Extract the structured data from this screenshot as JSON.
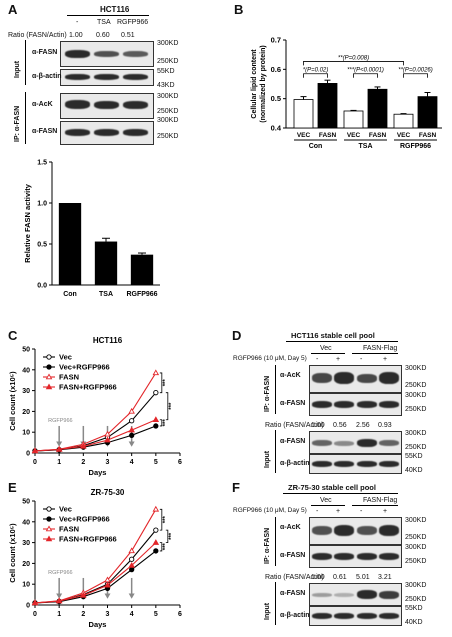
{
  "panelA": {
    "label": "A",
    "cell_line": "HCT116",
    "lanes": [
      "-",
      "TSA",
      "RGFP966"
    ],
    "ratio_label": "Ratio (FASN/Actin)",
    "ratios": [
      "1.00",
      "0.60",
      "0.51"
    ],
    "input_label": "Input",
    "ip_label": "IP: α-FASN",
    "blots": [
      {
        "name": "α-FASN",
        "markers": [
          "300KD",
          "250KD"
        ]
      },
      {
        "name": "α-β-actin",
        "markers": [
          "55KD",
          "43KD"
        ]
      },
      {
        "name": "α-AcK",
        "markers": [
          "300KD",
          "250KD"
        ]
      },
      {
        "name": "α-FASN",
        "markers": [
          "300KD",
          "250KD"
        ]
      }
    ]
  },
  "panelB": {
    "label": "B"
  },
  "panelC": {
    "label": "C"
  },
  "panelD": {
    "label": "D",
    "title": "HCT116 stable cell pool",
    "treatment": "RGFP966 (10 μM, Day 5)",
    "groups": [
      "Vec",
      "FASN-Flag"
    ],
    "signs": [
      "-",
      "+",
      "-",
      "+"
    ],
    "ip_label": "IP: α-FASN",
    "input_label": "Input",
    "ratio_label": "Ratio (FASN/Actin)",
    "ratios": [
      "1.00",
      "0.56",
      "2.56",
      "0.93"
    ],
    "blots": [
      {
        "name": "α-AcK",
        "markers": [
          "300KD",
          "250KD"
        ]
      },
      {
        "name": "α-FASN",
        "markers": [
          "300KD",
          "250KD"
        ]
      },
      {
        "name": "α-FASN",
        "markers": [
          "300KD",
          "250KD"
        ]
      },
      {
        "name": "α-β-actin",
        "markers": [
          "55KD",
          "40KD"
        ]
      }
    ]
  },
  "panelE": {
    "label": "E"
  },
  "panelF": {
    "label": "F",
    "title": "ZR-75-30 stable cell pool",
    "treatment": "RGFP966 (10 μM, Day 5)",
    "groups": [
      "Vec",
      "FASN-Flag"
    ],
    "signs": [
      "-",
      "+",
      "-",
      "+"
    ],
    "ip_label": "IP: α-FASN",
    "input_label": "Input",
    "ratio_label": "Ratio (FASN/Actin)",
    "ratios": [
      "1.00",
      "0.61",
      "5.01",
      "3.21"
    ],
    "blots": [
      {
        "name": "α-AcK",
        "markers": [
          "300KD",
          "250KD"
        ]
      },
      {
        "name": "α-FASN",
        "markers": [
          "300KD",
          "250KD"
        ]
      },
      {
        "name": "α-FASN",
        "markers": [
          "300KD",
          "250KD"
        ]
      },
      {
        "name": "α-β-actin",
        "markers": [
          "55KD",
          "40KD"
        ]
      }
    ]
  },
  "chart_data": [
    {
      "id": "A-activity",
      "type": "bar",
      "categories": [
        "Con",
        "TSA",
        "RGFP966"
      ],
      "values": [
        1.0,
        0.53,
        0.37
      ],
      "errors": [
        0.0,
        0.04,
        0.02
      ],
      "ylabel": "Relative FASN activity",
      "ylim": [
        0,
        1.5
      ],
      "yticks": [
        "0.0",
        "0.5",
        "1.0",
        "1.5"
      ]
    },
    {
      "id": "B-lipid",
      "type": "bar",
      "ylabel": "Cellular lipid content\n(normalized by protein)",
      "ylim": [
        0.4,
        0.7
      ],
      "yticks": [
        "0.4",
        "0.5",
        "0.6",
        "0.7"
      ],
      "groups": [
        "Con",
        "TSA",
        "RGFP966"
      ],
      "bar_labels": [
        "VEC",
        "FASN",
        "VEC",
        "FASN",
        "VEC",
        "FASN"
      ],
      "values": [
        0.497,
        0.552,
        0.458,
        0.532,
        0.447,
        0.507
      ],
      "errors": [
        0.01,
        0.011,
        0.002,
        0.008,
        0.002,
        0.014
      ],
      "fills": [
        "#ffffff",
        "#000000",
        "#ffffff",
        "#000000",
        "#ffffff",
        "#000000"
      ],
      "annotations": [
        {
          "text": "*(P=0.02)",
          "from": 0,
          "to": 1,
          "y": 0.585
        },
        {
          "text": "***(P<0.0001)",
          "from": 2,
          "to": 3,
          "y": 0.585
        },
        {
          "text": "**(P=0.0026)",
          "from": 4,
          "to": 5,
          "y": 0.585
        },
        {
          "text": "**(P=0.008)",
          "from": 0,
          "to": 4,
          "y": 0.627
        }
      ]
    },
    {
      "id": "C-growth",
      "type": "line",
      "title": "HCT116",
      "xlabel": "Days",
      "ylabel": "Cell count (x10⁵)",
      "xlim": [
        0,
        6
      ],
      "ylim": [
        0,
        50
      ],
      "xticks": [
        0,
        1,
        2,
        3,
        4,
        5,
        6
      ],
      "yticks": [
        0,
        10,
        20,
        30,
        40,
        50
      ],
      "x": [
        0,
        1,
        2,
        3,
        4,
        5
      ],
      "arrow_days": [
        1,
        2,
        3,
        4
      ],
      "arrow_label": "RGFP966",
      "significance": [
        "***",
        "***",
        "***"
      ],
      "series": [
        {
          "name": "Vec",
          "values": [
            1,
            1.6,
            3.5,
            7.5,
            15.5,
            29
          ],
          "color": "#000000",
          "marker": "open-circle"
        },
        {
          "name": "Vec+RGFP966",
          "values": [
            1,
            1.5,
            2.8,
            5.0,
            8.5,
            13
          ],
          "color": "#000000",
          "marker": "filled-circle"
        },
        {
          "name": "FASN",
          "values": [
            1,
            1.8,
            4.2,
            9.0,
            20,
            38.5
          ],
          "color": "#e3262a",
          "marker": "open-triangle"
        },
        {
          "name": "FASN+RGFP966",
          "values": [
            1,
            1.7,
            3.2,
            6.2,
            11,
            16
          ],
          "color": "#e3262a",
          "marker": "filled-triangle"
        }
      ]
    },
    {
      "id": "E-growth",
      "type": "line",
      "title": "ZR-75-30",
      "xlabel": "Days",
      "ylabel": "Cell count (x10⁵)",
      "xlim": [
        0,
        6
      ],
      "ylim": [
        0,
        50
      ],
      "xticks": [
        0,
        1,
        2,
        3,
        4,
        5,
        6
      ],
      "yticks": [
        0,
        10,
        20,
        30,
        40,
        50
      ],
      "x": [
        0,
        1,
        2,
        3,
        4,
        5
      ],
      "arrow_days": [
        1,
        2,
        3,
        4
      ],
      "arrow_label": "RGFP966",
      "significance": [
        "***",
        "***",
        "***"
      ],
      "series": [
        {
          "name": "Vec",
          "values": [
            1,
            1.8,
            5,
            10,
            22,
            36
          ],
          "color": "#000000",
          "marker": "open-circle"
        },
        {
          "name": "Vec+RGFP966",
          "values": [
            1,
            1.6,
            4,
            8,
            17,
            26
          ],
          "color": "#000000",
          "marker": "filled-circle"
        },
        {
          "name": "FASN",
          "values": [
            1,
            2.0,
            5.8,
            12,
            26,
            46
          ],
          "color": "#e3262a",
          "marker": "open-triangle"
        },
        {
          "name": "FASN+RGFP966",
          "values": [
            1,
            1.9,
            4.6,
            9.5,
            19,
            30
          ],
          "color": "#e3262a",
          "marker": "filled-triangle"
        }
      ]
    }
  ]
}
